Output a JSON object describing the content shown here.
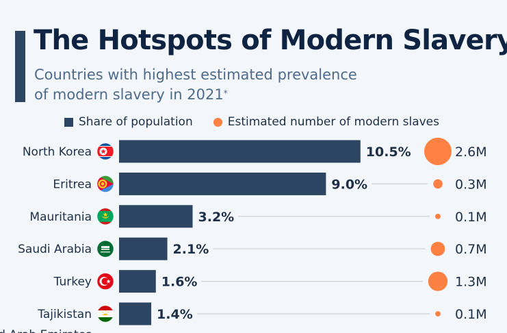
{
  "header": {
    "title": "The Hotspots of Modern Slavery",
    "subtitle_line1": "Countries with highest estimated prevalence",
    "subtitle_line2": "of modern slavery in 2021",
    "subtitle_footnote_mark": "*"
  },
  "legend": {
    "share_label": "Share of population",
    "slaves_label": "Estimated number of modern slaves"
  },
  "colors": {
    "bar": "#2b4562",
    "bubble": "#fd8142",
    "title": "#0f2442",
    "subtitle": "#4f6a8a",
    "gridline": "#c9d2dc"
  },
  "chart_data": {
    "type": "bar",
    "orientation": "horizontal",
    "title": "The Hotspots of Modern Slavery",
    "subtitle": "Countries with highest estimated prevalence of modern slavery in 2021*",
    "categories": [
      "North Korea",
      "Eritrea",
      "Mauritania",
      "Saudi Arabia",
      "Turkey",
      "Tajikistan"
    ],
    "flags": [
      "flag-north-korea",
      "flag-eritrea",
      "flag-mauritania",
      "flag-saudi-arabia",
      "flag-turkey",
      "flag-tajikistan"
    ],
    "series": [
      {
        "name": "Share of population",
        "unit": "%",
        "values": [
          10.5,
          9.0,
          3.2,
          2.1,
          1.6,
          1.4
        ],
        "labels": [
          "10.5%",
          "9.0%",
          "3.2%",
          "2.1%",
          "1.6%",
          "1.4%"
        ]
      },
      {
        "name": "Estimated number of modern slaves",
        "unit": "million",
        "values": [
          2.6,
          0.3,
          0.1,
          0.7,
          1.3,
          0.1
        ],
        "labels": [
          "2.6M",
          "0.3M",
          "0.1M",
          "0.7M",
          "1.3M",
          "0.1M"
        ]
      }
    ],
    "xlim": [
      0,
      10.5
    ],
    "legend_position": "top",
    "grid": false,
    "truncated_next_category": "United Arab Emirates"
  }
}
